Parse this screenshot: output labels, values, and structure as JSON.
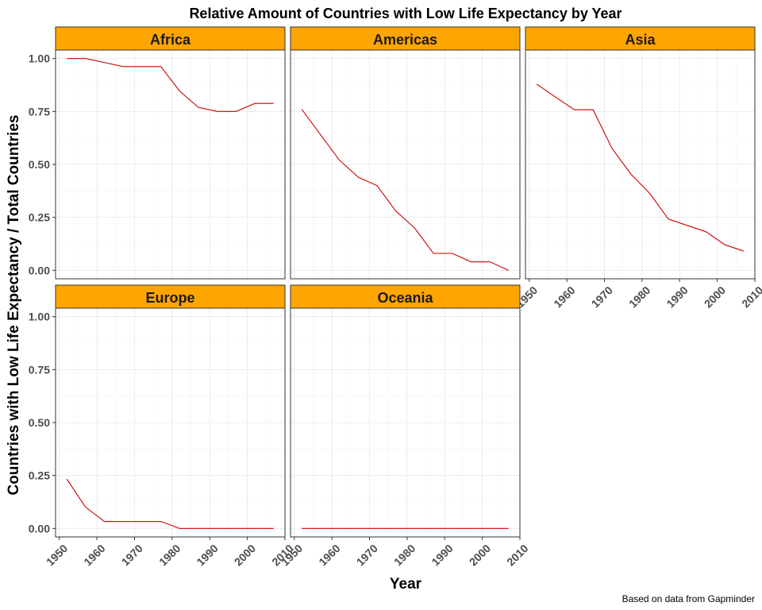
{
  "colors": {
    "strip_fill": "#FFA500",
    "line": "#CC0000"
  },
  "chart_data": {
    "type": "line",
    "title": "Relative Amount of Countries with Low Life Expectancy by Year",
    "xlabel": "Year",
    "ylabel": "Countries with Low Life Expectancy / Total Countries",
    "caption": "Based on data from Gapminder",
    "xlim": [
      1949,
      2010
    ],
    "ylim": [
      -0.04,
      1.04
    ],
    "x_ticks": [
      1950,
      1960,
      1970,
      1980,
      1990,
      2000,
      2010
    ],
    "y_ticks": [
      0.0,
      0.25,
      0.5,
      0.75,
      1.0
    ],
    "y_tick_labels": [
      "0.00",
      "0.25",
      "0.50",
      "0.75",
      "1.00"
    ],
    "grid": true,
    "legend": "none",
    "facets": [
      {
        "name": "Africa",
        "x": [
          1952,
          1957,
          1962,
          1967,
          1972,
          1977,
          1982,
          1987,
          1992,
          1997,
          2002,
          2007
        ],
        "y": [
          1.0,
          1.0,
          0.981,
          0.962,
          0.962,
          0.962,
          0.846,
          0.769,
          0.75,
          0.75,
          0.788,
          0.788
        ]
      },
      {
        "name": "Americas",
        "x": [
          1952,
          1957,
          1962,
          1967,
          1972,
          1977,
          1982,
          1987,
          1992,
          1997,
          2002,
          2007
        ],
        "y": [
          0.76,
          0.64,
          0.52,
          0.44,
          0.4,
          0.28,
          0.2,
          0.08,
          0.08,
          0.04,
          0.04,
          0.0
        ]
      },
      {
        "name": "Asia",
        "x": [
          1952,
          1957,
          1962,
          1967,
          1972,
          1977,
          1982,
          1987,
          1992,
          1997,
          2002,
          2007
        ],
        "y": [
          0.879,
          0.818,
          0.758,
          0.758,
          0.576,
          0.455,
          0.364,
          0.242,
          0.212,
          0.182,
          0.121,
          0.091
        ]
      },
      {
        "name": "Europe",
        "x": [
          1952,
          1957,
          1962,
          1967,
          1972,
          1977,
          1982,
          1987,
          1992,
          1997,
          2002,
          2007
        ],
        "y": [
          0.233,
          0.1,
          0.033,
          0.033,
          0.033,
          0.033,
          0.0,
          0.0,
          0.0,
          0.0,
          0.0,
          0.0
        ]
      },
      {
        "name": "Oceania",
        "x": [
          1952,
          1957,
          1962,
          1967,
          1972,
          1977,
          1982,
          1987,
          1992,
          1997,
          2002,
          2007
        ],
        "y": [
          0.0,
          0.0,
          0.0,
          0.0,
          0.0,
          0.0,
          0.0,
          0.0,
          0.0,
          0.0,
          0.0,
          0.0
        ]
      }
    ]
  }
}
